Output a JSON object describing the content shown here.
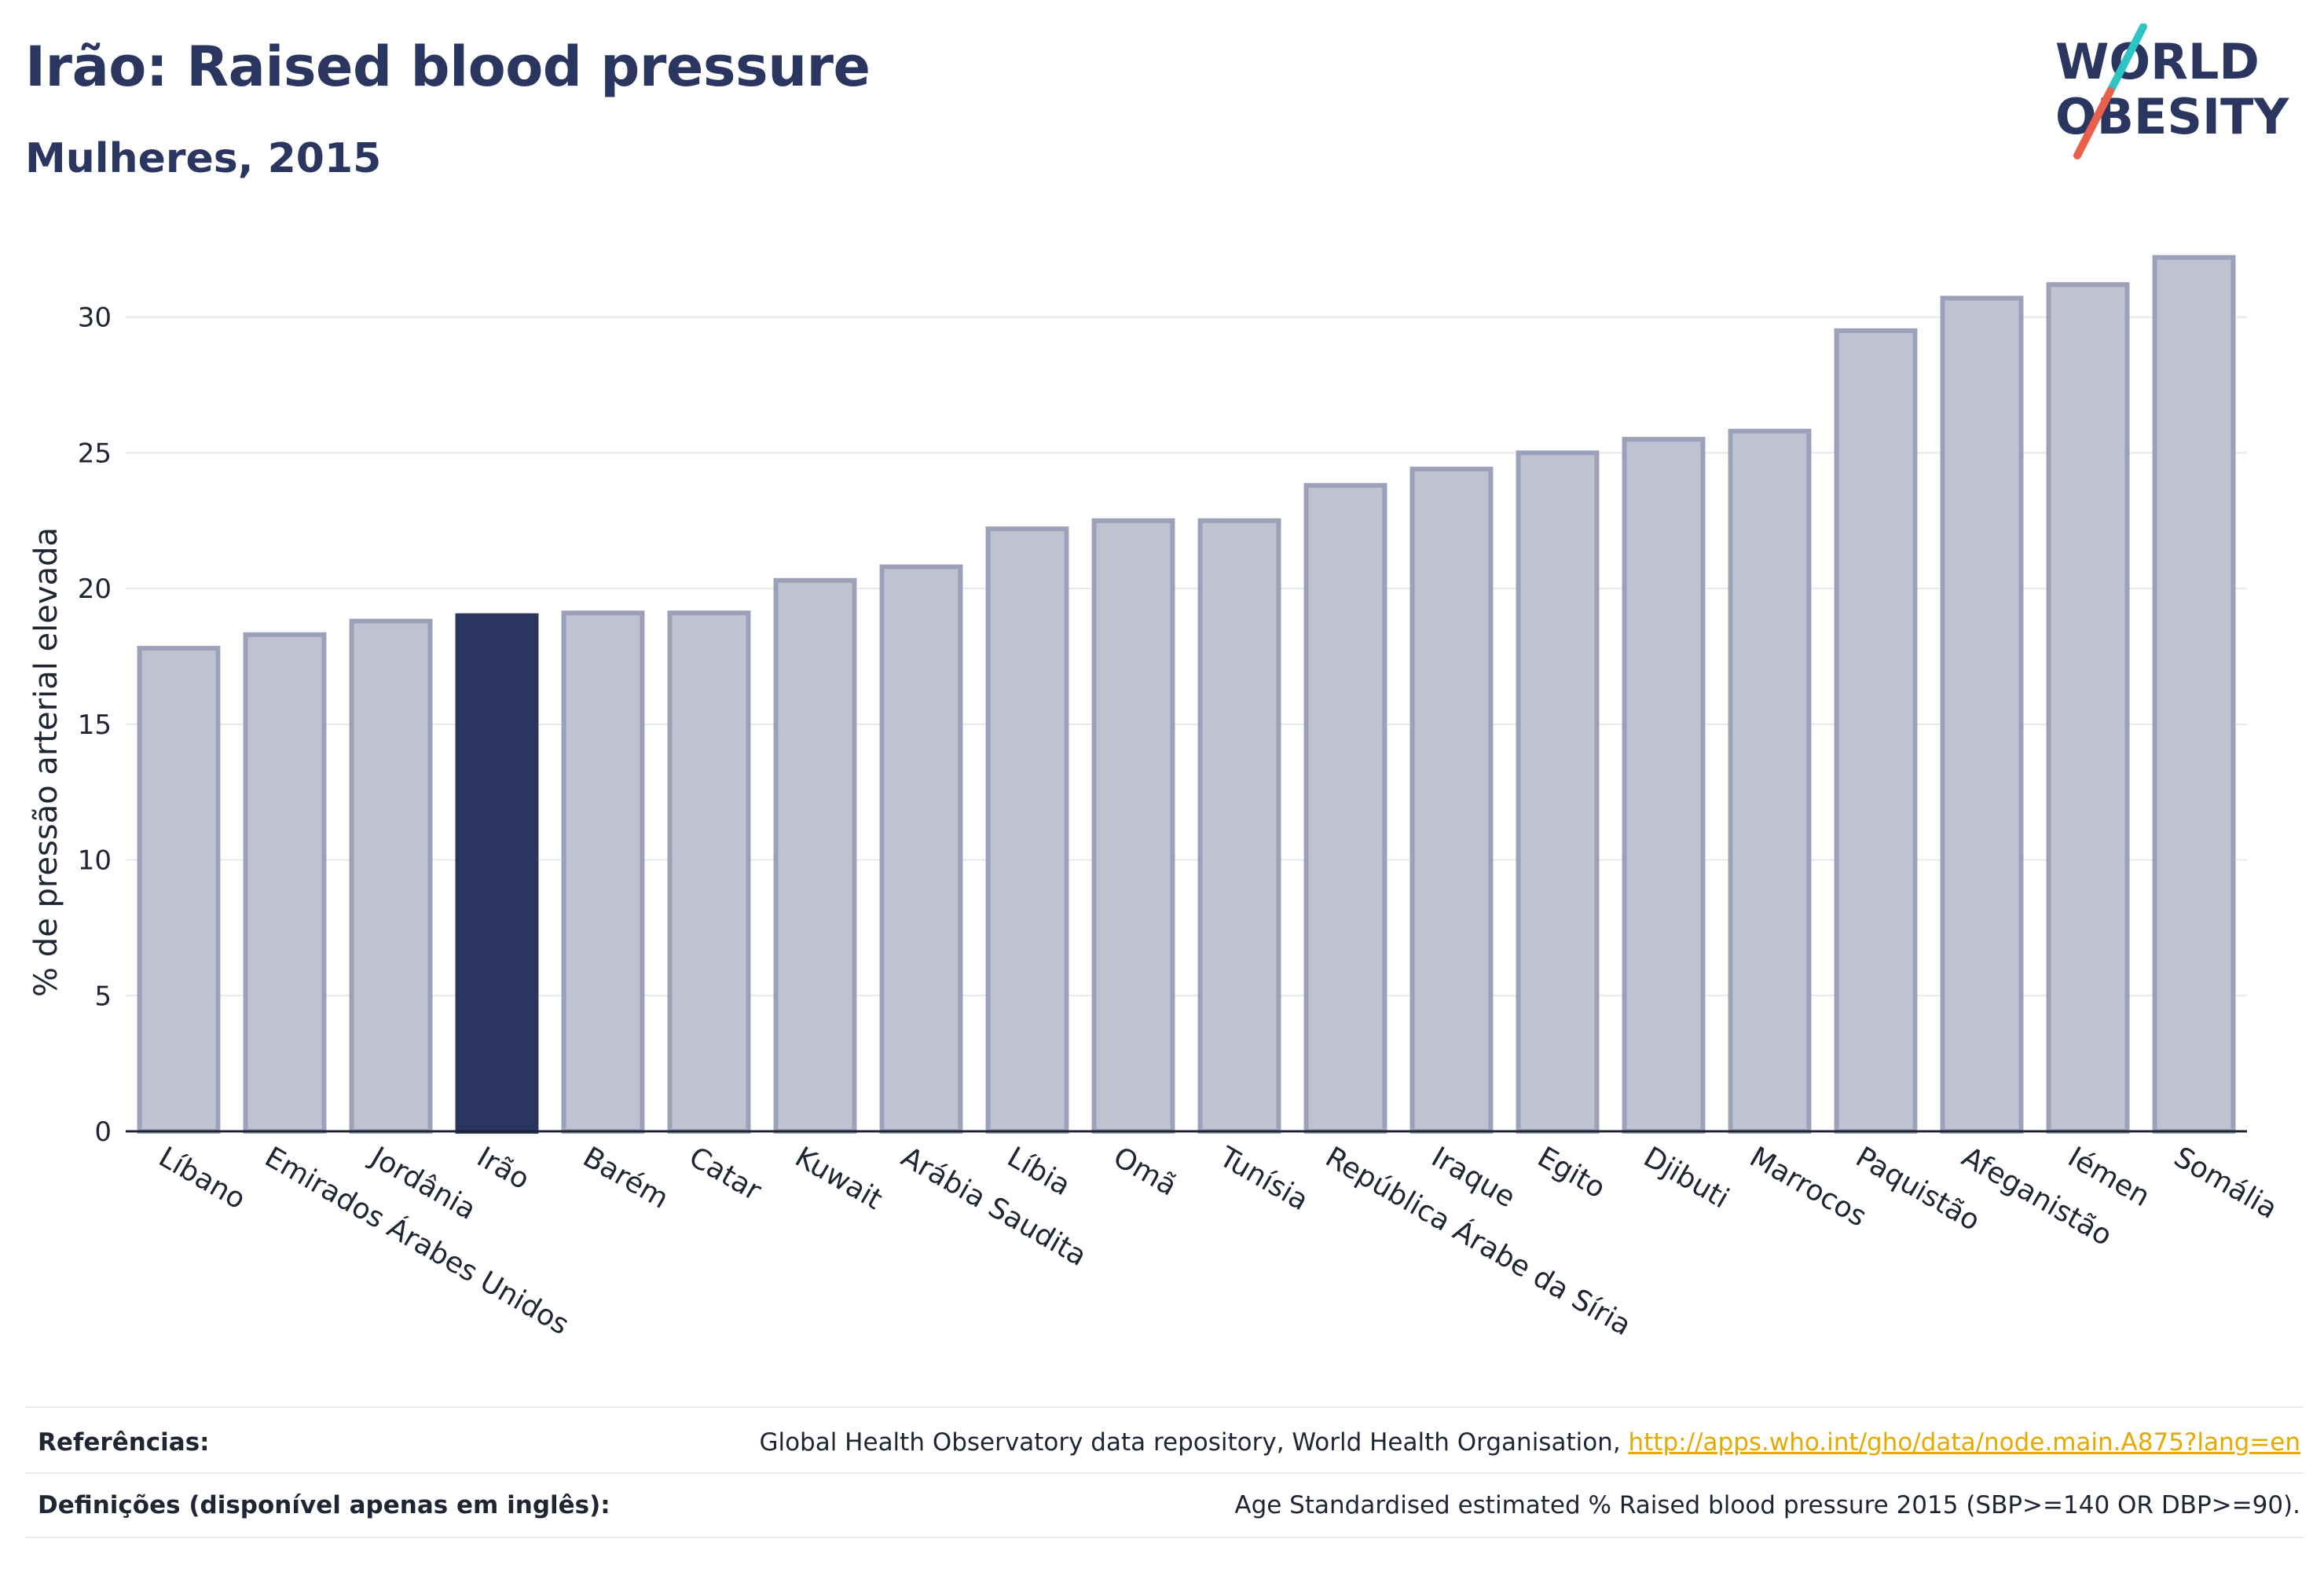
{
  "header": {
    "title": "Irão: Raised blood pressure",
    "subtitle": "Mulheres, 2015"
  },
  "logo": {
    "line1": "WORLD",
    "line2": "OBESITY",
    "accent_colors": [
      "#2ec4c4",
      "#e8604c"
    ],
    "text_color": "#2a3560"
  },
  "chart_data": {
    "type": "bar",
    "ylabel": "% de pressão arterial elevada",
    "xlabel": "",
    "ylim": [
      0,
      33
    ],
    "yticks": [
      0,
      5,
      10,
      15,
      20,
      25,
      30
    ],
    "grid": true,
    "highlight_category": "Irão",
    "colors": {
      "bar": "#bfc2d0",
      "bar_stroke": "#9ca1b9",
      "highlight": "#2a3560"
    },
    "categories": [
      "Líbano",
      "Emirados Árabes Unidos",
      "Jordânia",
      "Irão",
      "Barém",
      "Catar",
      "Kuwait",
      "Arábia Saudita",
      "Líbia",
      "Omã",
      "Tunísia",
      "República Árabe da Síria",
      "Iraque",
      "Egito",
      "Djibuti",
      "Marrocos",
      "Paquistão",
      "Afeganistão",
      "Iémen",
      "Somália"
    ],
    "values": [
      17.8,
      18.3,
      18.8,
      19.0,
      19.1,
      19.1,
      20.3,
      20.8,
      22.2,
      22.5,
      22.5,
      23.8,
      24.4,
      25.0,
      25.5,
      25.8,
      29.5,
      30.7,
      31.2,
      32.2
    ]
  },
  "footer": {
    "references_label": "Referências:",
    "references_text": "Global Health Observatory data repository, World Health Organisation, ",
    "references_link": "http://apps.who.int/gho/data/node.main.A875?lang=en",
    "definitions_label": "Definições (disponível apenas em inglês):",
    "definitions_text": "Age Standardised estimated % Raised blood pressure 2015 (SBP>=140 OR DBP>=90)."
  }
}
